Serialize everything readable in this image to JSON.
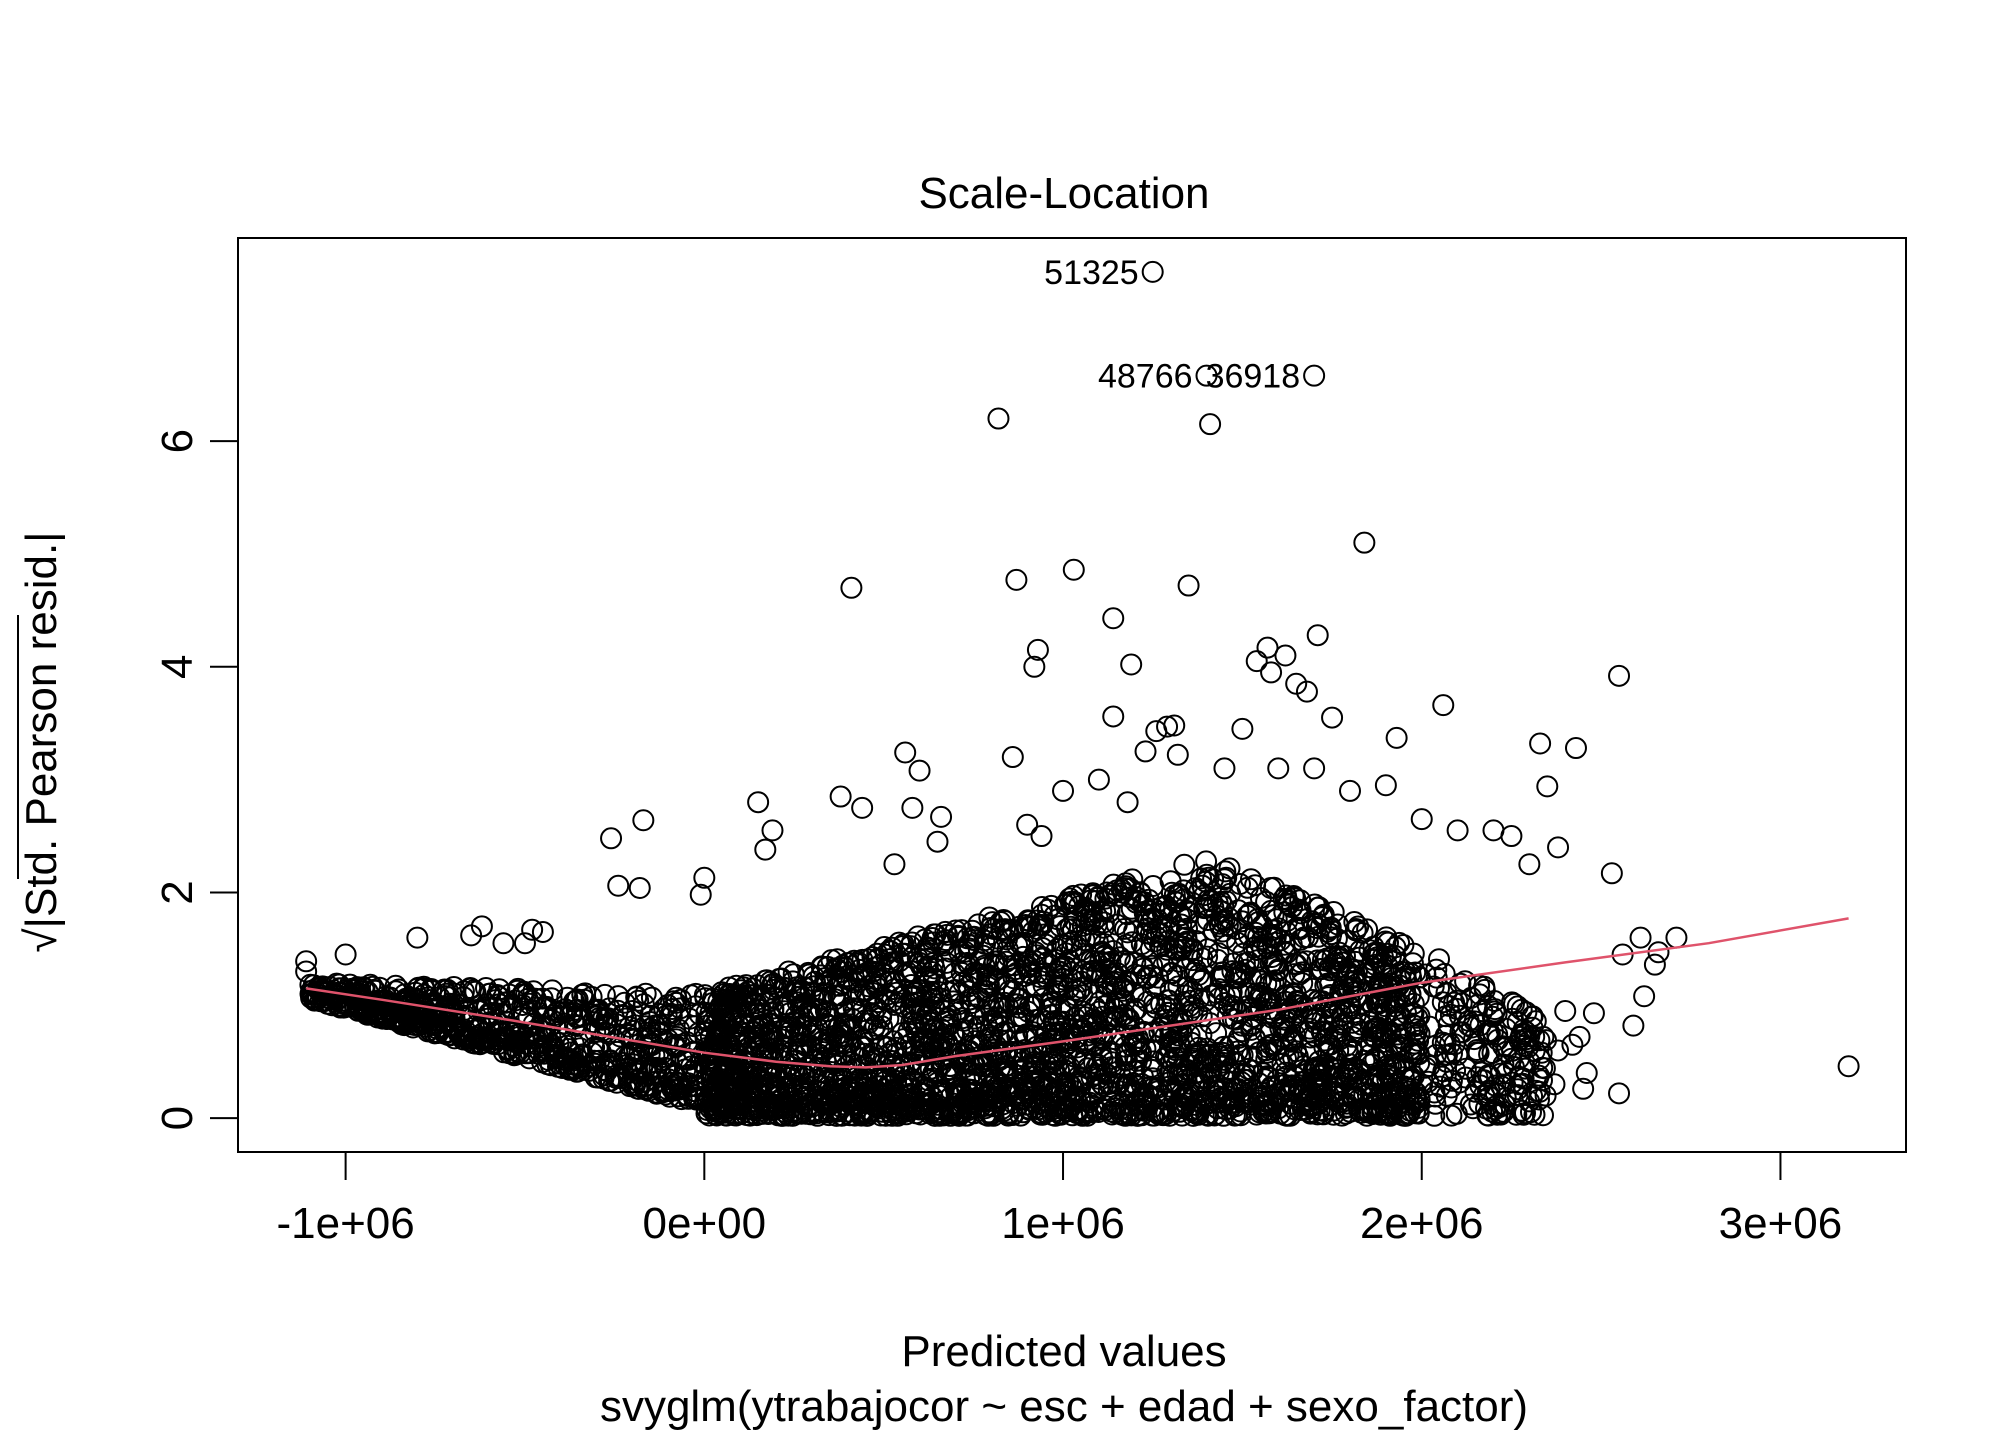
{
  "chart_data": {
    "type": "scatter",
    "title": "Scale-Location",
    "xlabel": "Predicted values",
    "sublabel": "svyglm(ytrabajocor ~ esc + edad + sexo_factor)",
    "ylabel_radical": "√",
    "ylabel": "|Std. Pearson resid.|",
    "xlim": [
      -1300000,
      3350000
    ],
    "ylim": [
      -0.3,
      7.8
    ],
    "x_ticks": [
      {
        "value": -1000000,
        "label": "-1e+06"
      },
      {
        "value": 0,
        "label": "0e+00"
      },
      {
        "value": 1000000,
        "label": "1e+06"
      },
      {
        "value": 2000000,
        "label": "2e+06"
      },
      {
        "value": 3000000,
        "label": "3e+06"
      }
    ],
    "y_ticks": [
      {
        "value": 0,
        "label": "0"
      },
      {
        "value": 2,
        "label": "2"
      },
      {
        "value": 4,
        "label": "4"
      },
      {
        "value": 6,
        "label": "6"
      }
    ],
    "smooth_color": "#DF536B",
    "point_color": "#000000",
    "smooth_line": [
      [
        -1110000,
        1.15
      ],
      [
        -900000,
        1.05
      ],
      [
        -600000,
        0.9
      ],
      [
        -300000,
        0.74
      ],
      [
        0,
        0.58
      ],
      [
        200000,
        0.5
      ],
      [
        350000,
        0.46
      ],
      [
        450000,
        0.45
      ],
      [
        550000,
        0.47
      ],
      [
        700000,
        0.55
      ],
      [
        1000000,
        0.68
      ],
      [
        1300000,
        0.82
      ],
      [
        1600000,
        0.96
      ],
      [
        2000000,
        1.2
      ],
      [
        2400000,
        1.38
      ],
      [
        2800000,
        1.55
      ],
      [
        3190000,
        1.77
      ]
    ],
    "labeled_points": [
      {
        "x": 1250000,
        "y": 7.5,
        "label": "51325"
      },
      {
        "x": 1400000,
        "y": 6.58,
        "label": "48766"
      },
      {
        "x": 1700000,
        "y": 6.58,
        "label": "36918"
      }
    ],
    "outlier_points": [
      [
        820000,
        6.2
      ],
      [
        1410000,
        6.15
      ],
      [
        1840000,
        5.1
      ],
      [
        410000,
        4.7
      ],
      [
        870000,
        4.77
      ],
      [
        1030000,
        4.86
      ],
      [
        1140000,
        4.43
      ],
      [
        1350000,
        4.72
      ],
      [
        930000,
        4.15
      ],
      [
        920000,
        4.0
      ],
      [
        1190000,
        4.02
      ],
      [
        1540000,
        4.05
      ],
      [
        1570000,
        4.17
      ],
      [
        1620000,
        4.1
      ],
      [
        1650000,
        3.85
      ],
      [
        1680000,
        3.78
      ],
      [
        1710000,
        4.28
      ],
      [
        1580000,
        3.95
      ],
      [
        2550000,
        3.92
      ],
      [
        2060000,
        3.66
      ],
      [
        1140000,
        3.56
      ],
      [
        1260000,
        3.43
      ],
      [
        1290000,
        3.47
      ],
      [
        1310000,
        3.48
      ],
      [
        1500000,
        3.45
      ],
      [
        1750000,
        3.55
      ],
      [
        1930000,
        3.37
      ],
      [
        2330000,
        3.32
      ],
      [
        2430000,
        3.28
      ],
      [
        560000,
        3.24
      ],
      [
        860000,
        3.2
      ],
      [
        1230000,
        3.25
      ],
      [
        1320000,
        3.22
      ],
      [
        2350000,
        2.94
      ],
      [
        600000,
        3.08
      ],
      [
        380000,
        2.85
      ],
      [
        440000,
        2.75
      ],
      [
        580000,
        2.75
      ],
      [
        660000,
        2.67
      ],
      [
        150000,
        2.8
      ],
      [
        190000,
        2.55
      ],
      [
        170000,
        2.38
      ],
      [
        -260000,
        2.48
      ],
      [
        -170000,
        2.64
      ],
      [
        -240000,
        2.06
      ],
      [
        -180000,
        2.04
      ],
      [
        -10000,
        1.98
      ],
      [
        0,
        2.13
      ],
      [
        530000,
        2.25
      ],
      [
        650000,
        2.45
      ],
      [
        2530000,
        2.17
      ],
      [
        2610000,
        1.6
      ],
      [
        2710000,
        1.6
      ],
      [
        2660000,
        1.47
      ],
      [
        2560000,
        1.45
      ],
      [
        2650000,
        1.36
      ],
      [
        2620000,
        1.08
      ],
      [
        2590000,
        0.82
      ],
      [
        2550000,
        0.22
      ],
      [
        2450000,
        0.26
      ],
      [
        3190000,
        0.46
      ],
      [
        2400000,
        0.95
      ],
      [
        2480000,
        0.93
      ],
      [
        2440000,
        0.72
      ],
      [
        2460000,
        0.4
      ],
      [
        2370000,
        0.3
      ],
      [
        2300000,
        0.5
      ],
      [
        2380000,
        0.6
      ],
      [
        2420000,
        0.65
      ],
      [
        1100000,
        3.0
      ],
      [
        1180000,
        2.8
      ],
      [
        1000000,
        2.9
      ],
      [
        900000,
        2.6
      ],
      [
        940000,
        2.5
      ],
      [
        1450000,
        3.1
      ],
      [
        1600000,
        3.1
      ],
      [
        1700000,
        3.1
      ],
      [
        1800000,
        2.9
      ],
      [
        1900000,
        2.95
      ],
      [
        2000000,
        2.65
      ],
      [
        2100000,
        2.55
      ],
      [
        2200000,
        2.55
      ],
      [
        2250000,
        2.5
      ],
      [
        2300000,
        2.25
      ],
      [
        2380000,
        2.4
      ],
      [
        -560000,
        1.55
      ],
      [
        -500000,
        1.55
      ],
      [
        -450000,
        1.65
      ],
      [
        -480000,
        1.67
      ],
      [
        -650000,
        1.62
      ],
      [
        -620000,
        1.7
      ],
      [
        -800000,
        1.6
      ],
      [
        -1000000,
        1.45
      ],
      [
        -1110000,
        1.39
      ],
      [
        -1110000,
        1.3
      ],
      [
        -1070000,
        1.12
      ],
      [
        -1030000,
        1.1
      ]
    ]
  }
}
